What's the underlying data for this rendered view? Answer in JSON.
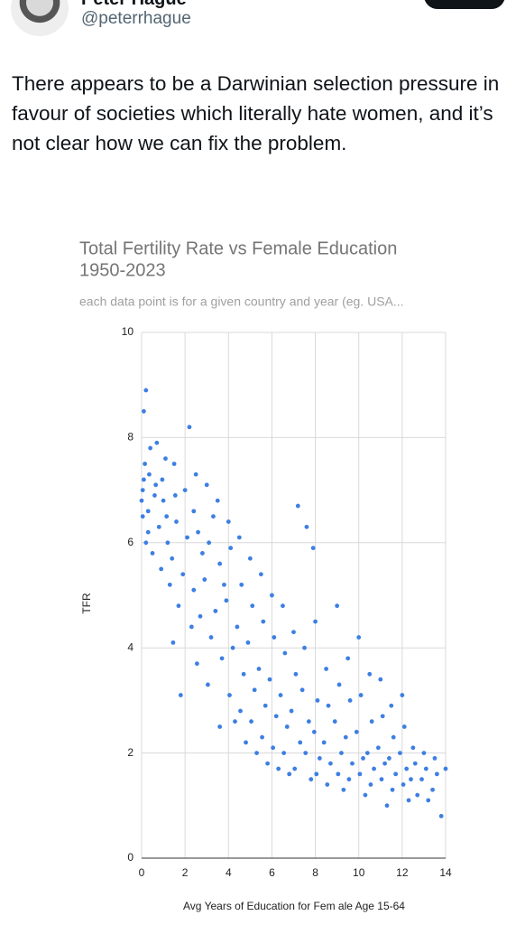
{
  "author": {
    "name": "Peter Hague",
    "handle": "@peterrhague"
  },
  "post": {
    "text": "There appears to be a Darwinian selection pressure in favour of societies which literally hate women, and it’s not clear how we can fix the problem."
  },
  "chart_data": {
    "type": "scatter",
    "title": [
      "Total Fertility Rate vs Female Education",
      "1950-2023"
    ],
    "subtitle": "each data point is for a given country and year (eg. USA...",
    "x_label": "Avg Years of Education for Fem ale Age 15-64",
    "y_label": "TFR",
    "color": "#3d7fe3",
    "grid": true,
    "xlim": [
      0,
      14
    ],
    "xticks": [
      0,
      2,
      4,
      6,
      8,
      10,
      12,
      14
    ],
    "ylim": [
      0,
      10
    ],
    "yticks": [
      0,
      2,
      4,
      6,
      8,
      10
    ],
    "x": [
      0,
      0.1,
      0.05,
      0.2,
      0.15,
      0.1,
      0.2,
      0.3,
      0.05,
      0.4,
      0.3,
      0.5,
      0.35,
      0.7,
      0.6,
      0.8,
      0.9,
      0.65,
      1.1,
      1.0,
      1.2,
      1.3,
      0.95,
      1.15,
      1.5,
      1.6,
      1.4,
      1.7,
      1.55,
      1.45,
      2.2,
      2.0,
      2.1,
      1.9,
      2.3,
      1.8,
      2.4,
      2.5,
      2.6,
      2.4,
      2.7,
      2.55,
      2.8,
      3.0,
      3.1,
      2.9,
      3.2,
      3.05,
      3.3,
      3.5,
      3.6,
      3.4,
      3.7,
      3.6,
      3.8,
      4.0,
      4.1,
      3.9,
      4.2,
      4.05,
      4.3,
      4.5,
      4.6,
      4.4,
      4.7,
      4.55,
      4.8,
      5.0,
      5.1,
      4.9,
      5.2,
      5.05,
      5.3,
      5.5,
      5.6,
      5.4,
      5.7,
      5.55,
      5.8,
      6.0,
      6.1,
      5.9,
      6.2,
      6.05,
      6.3,
      6.5,
      6.6,
      6.4,
      6.7,
      6.55,
      6.8,
      7.2,
      7.0,
      7.1,
      6.9,
      7.3,
      7.05,
      7.6,
      7.5,
      7.4,
      7.7,
      7.55,
      7.8,
      7.9,
      8.0,
      8.1,
      7.95,
      8.2,
      8.05,
      8.5,
      8.6,
      8.4,
      8.7,
      8.55,
      9.0,
      9.1,
      8.9,
      9.2,
      9.05,
      9.3,
      9.5,
      9.6,
      9.4,
      9.7,
      9.55,
      10.0,
      10.1,
      9.9,
      10.2,
      10.05,
      10.3,
      10.5,
      10.6,
      10.4,
      10.7,
      10.55,
      11.0,
      11.1,
      10.9,
      11.2,
      11.05,
      11.3,
      11.5,
      11.6,
      11.4,
      11.7,
      11.55,
      12.0,
      12.1,
      11.9,
      12.2,
      12.05,
      12.3,
      12.5,
      12.6,
      12.4,
      12.7,
      13.0,
      13.1,
      12.9,
      13.2,
      13.5,
      13.6,
      13.4,
      14.0,
      13.8
    ],
    "values": [
      6.8,
      7.2,
      6.5,
      6.0,
      7.5,
      8.5,
      8.9,
      6.2,
      7.0,
      7.8,
      6.6,
      5.8,
      7.3,
      7.9,
      6.9,
      6.3,
      5.5,
      7.1,
      7.6,
      6.8,
      6.0,
      5.2,
      7.2,
      6.5,
      7.5,
      6.4,
      5.7,
      4.8,
      6.9,
      4.1,
      8.2,
      7.0,
      6.1,
      5.4,
      4.4,
      3.1,
      6.6,
      7.3,
      6.2,
      5.1,
      4.6,
      3.7,
      5.8,
      7.1,
      6.0,
      5.3,
      4.2,
      3.3,
      6.5,
      6.8,
      5.6,
      4.7,
      3.8,
      2.5,
      5.2,
      6.4,
      5.9,
      4.9,
      4.0,
      3.1,
      2.6,
      6.1,
      5.2,
      4.4,
      3.5,
      2.8,
      2.2,
      5.7,
      4.8,
      4.1,
      3.2,
      2.6,
      2.0,
      5.4,
      4.5,
      3.6,
      2.9,
      2.3,
      1.8,
      5.0,
      4.2,
      3.4,
      2.7,
      2.1,
      1.7,
      4.8,
      3.9,
      3.1,
      2.5,
      2.0,
      1.6,
      6.7,
      4.3,
      3.5,
      2.8,
      2.2,
      1.7,
      6.3,
      4.0,
      3.2,
      2.6,
      2.0,
      1.5,
      5.9,
      4.5,
      3.0,
      2.4,
      1.9,
      1.6,
      3.6,
      2.9,
      2.2,
      1.8,
      1.4,
      4.8,
      3.3,
      2.6,
      2.0,
      1.6,
      1.3,
      3.8,
      3.0,
      2.3,
      1.8,
      1.5,
      4.2,
      3.1,
      2.4,
      1.9,
      1.6,
      1.2,
      3.5,
      2.6,
      2.0,
      1.7,
      1.4,
      3.4,
      2.7,
      2.1,
      1.8,
      1.5,
      1.0,
      2.9,
      2.3,
      1.9,
      1.6,
      1.3,
      3.1,
      2.5,
      2.0,
      1.7,
      1.4,
      1.1,
      2.1,
      1.8,
      1.5,
      1.2,
      2.0,
      1.7,
      1.5,
      1.1,
      1.9,
      1.6,
      1.3,
      1.7,
      0.8
    ]
  }
}
